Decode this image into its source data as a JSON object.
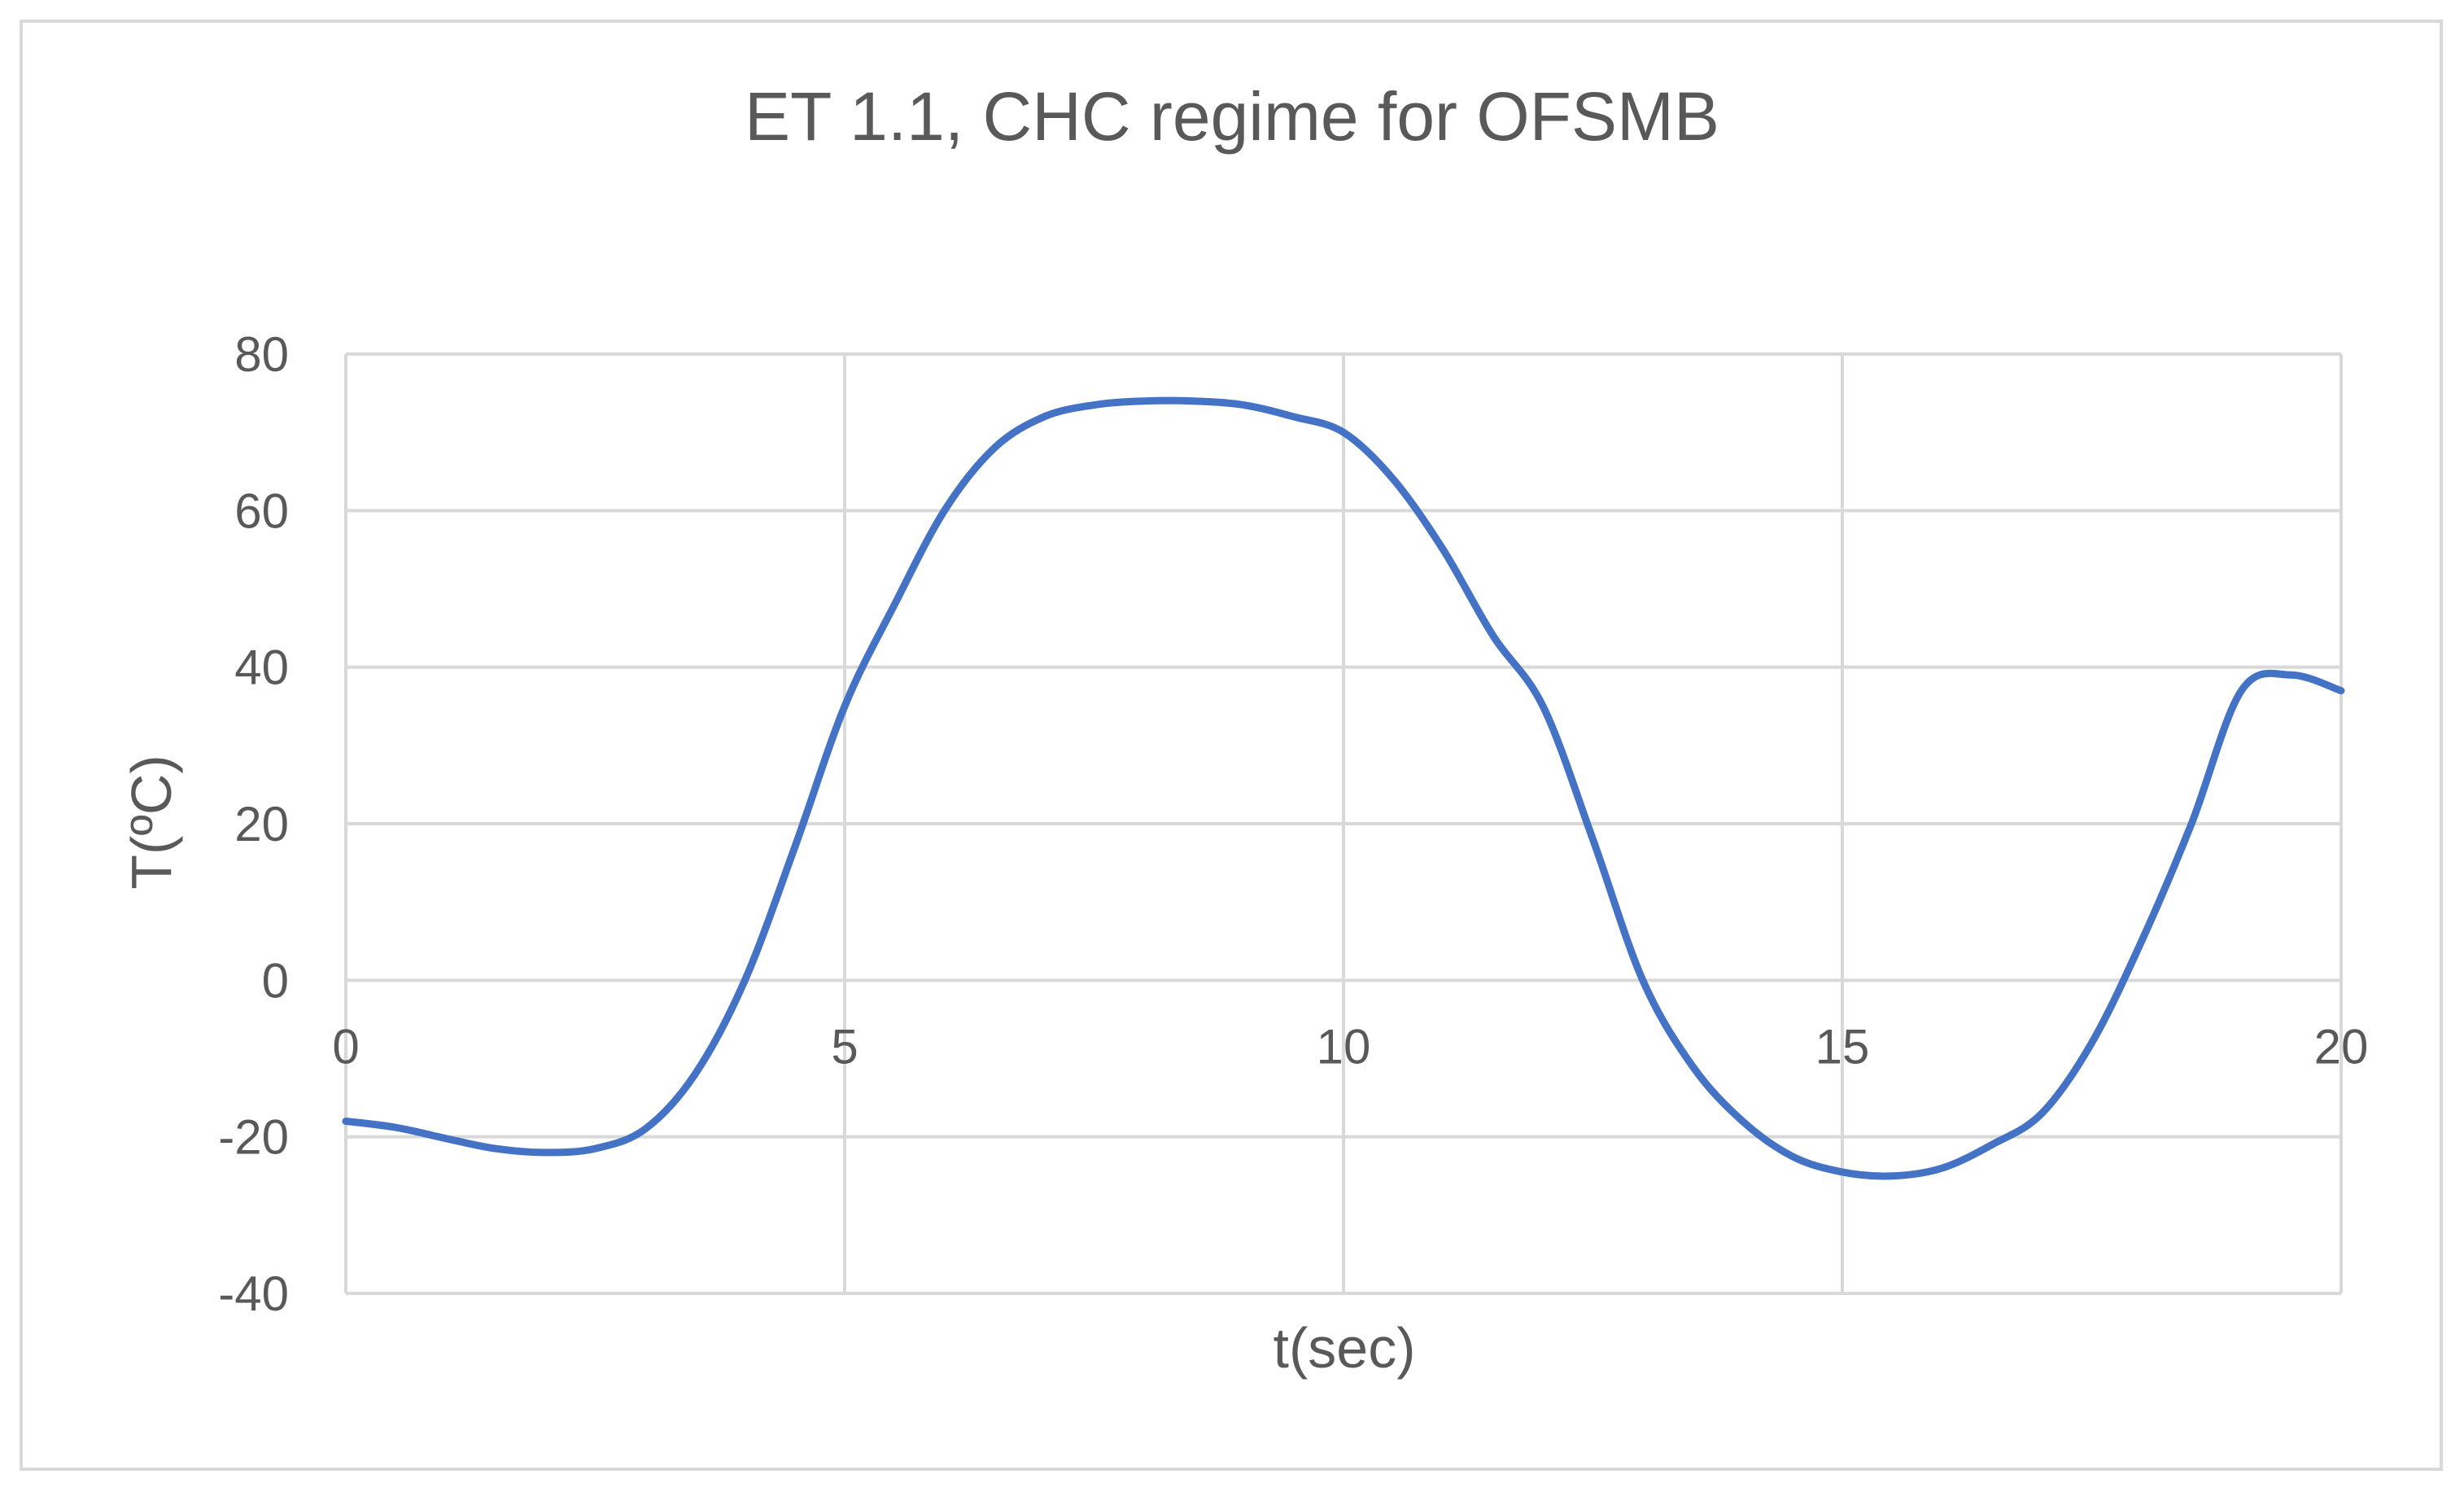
{
  "chart_data": {
    "type": "line",
    "title": "ET 1.1, CHC regime for OFSMB",
    "xlabel": "t(sec)",
    "ylabel": "T(ºC)",
    "xlim": [
      0,
      20
    ],
    "ylim": [
      -40,
      80
    ],
    "x_ticks": [
      "0",
      "5",
      "10",
      "15",
      "20"
    ],
    "y_ticks": [
      "80",
      "60",
      "40",
      "20",
      "0",
      "-20",
      "-40"
    ],
    "grid": true,
    "legend": "none",
    "series_color": "#4472C4",
    "series": [
      {
        "x": [
          0,
          0.5,
          1,
          1.5,
          2,
          2.5,
          3,
          3.5,
          4,
          4.5,
          5,
          5.5,
          6,
          6.5,
          7,
          7.5,
          8,
          8.5,
          9,
          9.5,
          10,
          10.5,
          11,
          11.5,
          12,
          12.5,
          13,
          13.5,
          14,
          14.5,
          15,
          15.5,
          16,
          16.5,
          17,
          17.5,
          18,
          18.5,
          19,
          19.5,
          20
        ],
        "values": [
          -18,
          -18.8,
          -20.2,
          -21.5,
          -22,
          -21.5,
          -19,
          -12,
          0,
          17,
          35,
          48,
          60,
          68,
          72,
          73.5,
          74,
          74,
          73.5,
          72,
          70,
          64,
          55,
          44,
          35,
          18,
          0,
          -11,
          -18,
          -22.5,
          -24.5,
          -25,
          -24,
          -21,
          -17,
          -8,
          5,
          20,
          37,
          39,
          37
        ]
      }
    ]
  }
}
